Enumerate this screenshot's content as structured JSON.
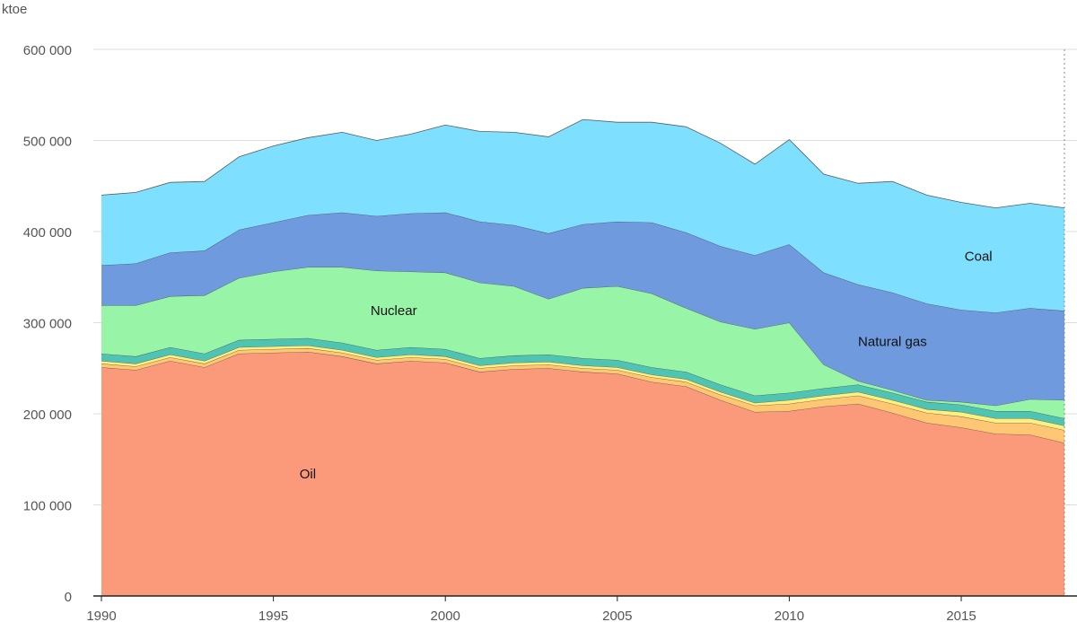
{
  "chart_data": {
    "type": "area",
    "stacked": true,
    "y_unit": "ktoe",
    "x": [
      1990,
      1991,
      1992,
      1993,
      1994,
      1995,
      1996,
      1997,
      1998,
      1999,
      2000,
      2001,
      2002,
      2003,
      2004,
      2005,
      2006,
      2007,
      2008,
      2009,
      2010,
      2011,
      2012,
      2013,
      2014,
      2015,
      2016,
      2017,
      2018
    ],
    "xlim": [
      1990,
      2018
    ],
    "ylim": [
      0,
      600000
    ],
    "x_ticks": [
      "1990",
      "1995",
      "2000",
      "2005",
      "2010",
      "2015"
    ],
    "y_ticks": [
      "0",
      "100 000",
      "200 000",
      "300 000",
      "400 000",
      "500 000",
      "600 000"
    ],
    "grid": "horizontal",
    "series": [
      {
        "name": "Oil",
        "color": "#fa9a7a",
        "values": [
          251000,
          248000,
          258000,
          251000,
          266000,
          267000,
          268000,
          263000,
          255000,
          258000,
          256000,
          246000,
          249000,
          250000,
          246000,
          244000,
          235000,
          230000,
          215000,
          202000,
          203000,
          208000,
          211000,
          201000,
          190000,
          185000,
          178000,
          177000,
          168000
        ]
      },
      {
        "name": "",
        "color": "#ffc773",
        "values": [
          4000,
          4000,
          4000,
          4000,
          4000,
          4000,
          4000,
          4000,
          4000,
          4000,
          4000,
          4000,
          4000,
          4000,
          4000,
          4000,
          5000,
          5000,
          6000,
          7000,
          8000,
          8000,
          9000,
          10000,
          11000,
          12000,
          12000,
          13000,
          14000
        ]
      },
      {
        "name": "",
        "color": "#ffef80",
        "values": [
          3000,
          3000,
          3000,
          3000,
          3000,
          3000,
          3000,
          3000,
          3000,
          3000,
          3000,
          3000,
          3000,
          3000,
          3000,
          3000,
          3000,
          3000,
          3000,
          3000,
          4000,
          4000,
          4000,
          4000,
          4000,
          5000,
          5000,
          5000,
          5000
        ]
      },
      {
        "name": "",
        "color": "#4fc4b3",
        "values": [
          8000,
          8000,
          8000,
          8000,
          8000,
          8000,
          8000,
          8000,
          8000,
          8000,
          8000,
          8000,
          8000,
          8000,
          8000,
          8000,
          8000,
          8000,
          8000,
          8000,
          8000,
          8000,
          8000,
          8000,
          8000,
          8000,
          8000,
          8000,
          8000
        ]
      },
      {
        "name": "Nuclear",
        "color": "#98f5a8",
        "values": [
          53000,
          56000,
          56000,
          64000,
          68000,
          74000,
          78000,
          83000,
          87000,
          83000,
          84000,
          83000,
          76000,
          61000,
          77000,
          81000,
          81000,
          70000,
          69000,
          73000,
          77000,
          26000,
          4000,
          3000,
          2000,
          3000,
          6000,
          13000,
          20000
        ]
      },
      {
        "name": "Natural gas",
        "color": "#6f9bde",
        "values": [
          44000,
          46000,
          48000,
          49000,
          53000,
          54000,
          57000,
          60000,
          60000,
          64000,
          66000,
          67000,
          67000,
          72000,
          70000,
          71000,
          78000,
          83000,
          83000,
          81000,
          86000,
          101000,
          106000,
          107000,
          106000,
          101000,
          102000,
          100000,
          98000
        ]
      },
      {
        "name": "Coal",
        "color": "#7edfff",
        "values": [
          77000,
          78000,
          77000,
          76000,
          80000,
          84000,
          85000,
          88000,
          83000,
          87000,
          96000,
          99000,
          102000,
          106000,
          115000,
          109000,
          110000,
          116000,
          113000,
          100000,
          115000,
          108000,
          111000,
          122000,
          119000,
          118000,
          115000,
          115000,
          113000
        ]
      }
    ],
    "annotations": [
      "Oil",
      "Nuclear",
      "Natural gas",
      "Coal"
    ]
  }
}
